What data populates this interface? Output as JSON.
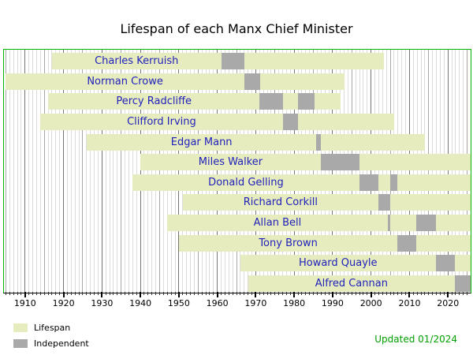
{
  "title": "Lifespan of each Manx Chief Minister",
  "footer": {
    "updated": "Updated 01/2024",
    "updated_color": "#00a000"
  },
  "legend": {
    "items": [
      {
        "label": "Lifespan",
        "color": "#e6ecbe"
      },
      {
        "label": "Independent",
        "color": "#a9a9a9"
      }
    ]
  },
  "chart_data": {
    "type": "timeline",
    "title": "Lifespan of each Manx Chief Minister",
    "x_axis": {
      "min": 1904.5,
      "max": 2025.9,
      "decade_ticks": [
        1910,
        1920,
        1930,
        1940,
        1950,
        1960,
        1970,
        1980,
        1990,
        2000,
        2010,
        2020
      ],
      "minor_tick_every": 1,
      "grid": true
    },
    "bar_color": "#e6ecbe",
    "term_color": "#a9a9a9",
    "name_color": "#2222bb",
    "legend_position": "bottom-left",
    "people": [
      {
        "name": "Charles Kerruish",
        "born": 1917,
        "died": 2003.3,
        "terms": [
          [
            1961,
            1967
          ]
        ]
      },
      {
        "name": "Norman Crowe",
        "born": 1905,
        "died": 1993,
        "terms": [
          [
            1967,
            1971.2
          ]
        ]
      },
      {
        "name": "Percy Radcliffe",
        "born": 1916,
        "died": 1992,
        "terms": [
          [
            1971,
            1977
          ],
          [
            1981,
            1985.2
          ]
        ]
      },
      {
        "name": "Clifford Irving",
        "born": 1914,
        "died": 2006,
        "terms": [
          [
            1977,
            1981
          ]
        ]
      },
      {
        "name": "Edgar Mann",
        "born": 1926,
        "died": 2014,
        "terms": [
          [
            1985.8,
            1986.9
          ]
        ]
      },
      {
        "name": "Miles Walker",
        "born": 1940,
        "died": null,
        "terms": [
          [
            1986.9,
            1996.9
          ]
        ]
      },
      {
        "name": "Donald Gelling",
        "born": 1938,
        "died": null,
        "terms": [
          [
            1996.9,
            2001.9
          ],
          [
            2004.9,
            2006.9
          ]
        ]
      },
      {
        "name": "Richard Corkill",
        "born": 1951,
        "died": null,
        "terms": [
          [
            2001.9,
            2004.9
          ]
        ]
      },
      {
        "name": "Allan Bell",
        "born": 1947,
        "died": null,
        "terms": [
          [
            2004.3,
            2004.9
          ],
          [
            2011.8,
            2016.8
          ]
        ]
      },
      {
        "name": "Tony Brown",
        "born": 1950,
        "died": null,
        "terms": [
          [
            2006.9,
            2011.8
          ]
        ]
      },
      {
        "name": "Howard Quayle",
        "born": 1966,
        "died": null,
        "terms": [
          [
            2016.8,
            2021.8
          ]
        ]
      },
      {
        "name": "Alfred Cannan",
        "born": 1968,
        "died": null,
        "terms": [
          [
            2021.8,
            null
          ]
        ]
      }
    ]
  }
}
